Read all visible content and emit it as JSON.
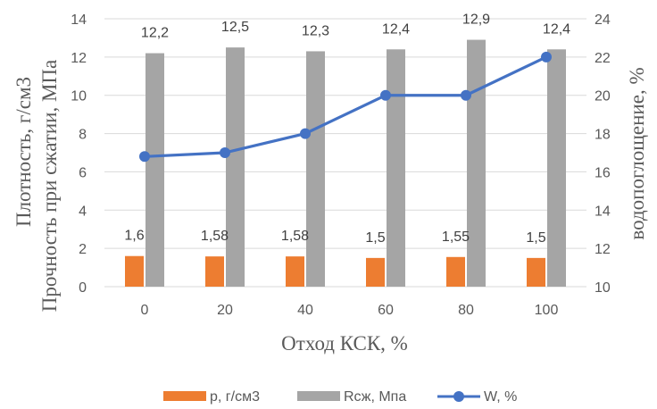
{
  "chart_data": {
    "type": "bar",
    "categories": [
      "0",
      "20",
      "40",
      "60",
      "80",
      "100"
    ],
    "series": [
      {
        "name": "р, г/см3",
        "kind": "bar",
        "axis": "left",
        "color": "#ED7D31",
        "values": [
          1.6,
          1.58,
          1.58,
          1.5,
          1.55,
          1.5
        ],
        "labels": [
          "1,6",
          "1,58",
          "1,58",
          "1,5",
          "1,55",
          "1,5"
        ]
      },
      {
        "name": "Rсж, Мпа",
        "kind": "bar",
        "axis": "left",
        "color": "#A5A5A5",
        "values": [
          12.2,
          12.5,
          12.3,
          12.4,
          12.9,
          12.4
        ],
        "labels": [
          "12,2",
          "12,5",
          "12,3",
          "12,4",
          "12,9",
          "12,4"
        ]
      },
      {
        "name": "W, %",
        "kind": "line",
        "axis": "right",
        "color": "#4472C4",
        "values": [
          16.8,
          17,
          18,
          20,
          20,
          22
        ]
      }
    ],
    "xlabel": "Отход КСК, %",
    "ylabel_lines": [
      "Плотность, г/см3",
      "Прочность при сжатии, МПа"
    ],
    "y2label": "водопоглощение, %",
    "ylim": [
      0,
      14
    ],
    "yticks": [
      "0",
      "2",
      "4",
      "6",
      "8",
      "10",
      "12",
      "14"
    ],
    "y2lim": [
      10,
      24
    ],
    "y2ticks": [
      "10",
      "12",
      "14",
      "16",
      "18",
      "20",
      "22",
      "24"
    ],
    "grid": true,
    "legend_position": "bottom"
  }
}
